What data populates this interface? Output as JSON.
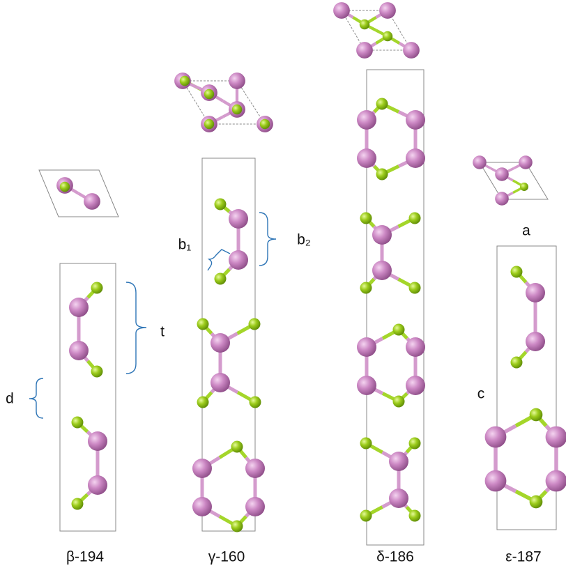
{
  "labels": {
    "beta": "β-194",
    "gamma": "γ-160",
    "delta": "δ-186",
    "epsilon": "ε-187"
  },
  "annotations": {
    "t": "t",
    "d": "d",
    "b1": "b₁",
    "b2": "b₂",
    "a": "a",
    "c": "c"
  }
}
